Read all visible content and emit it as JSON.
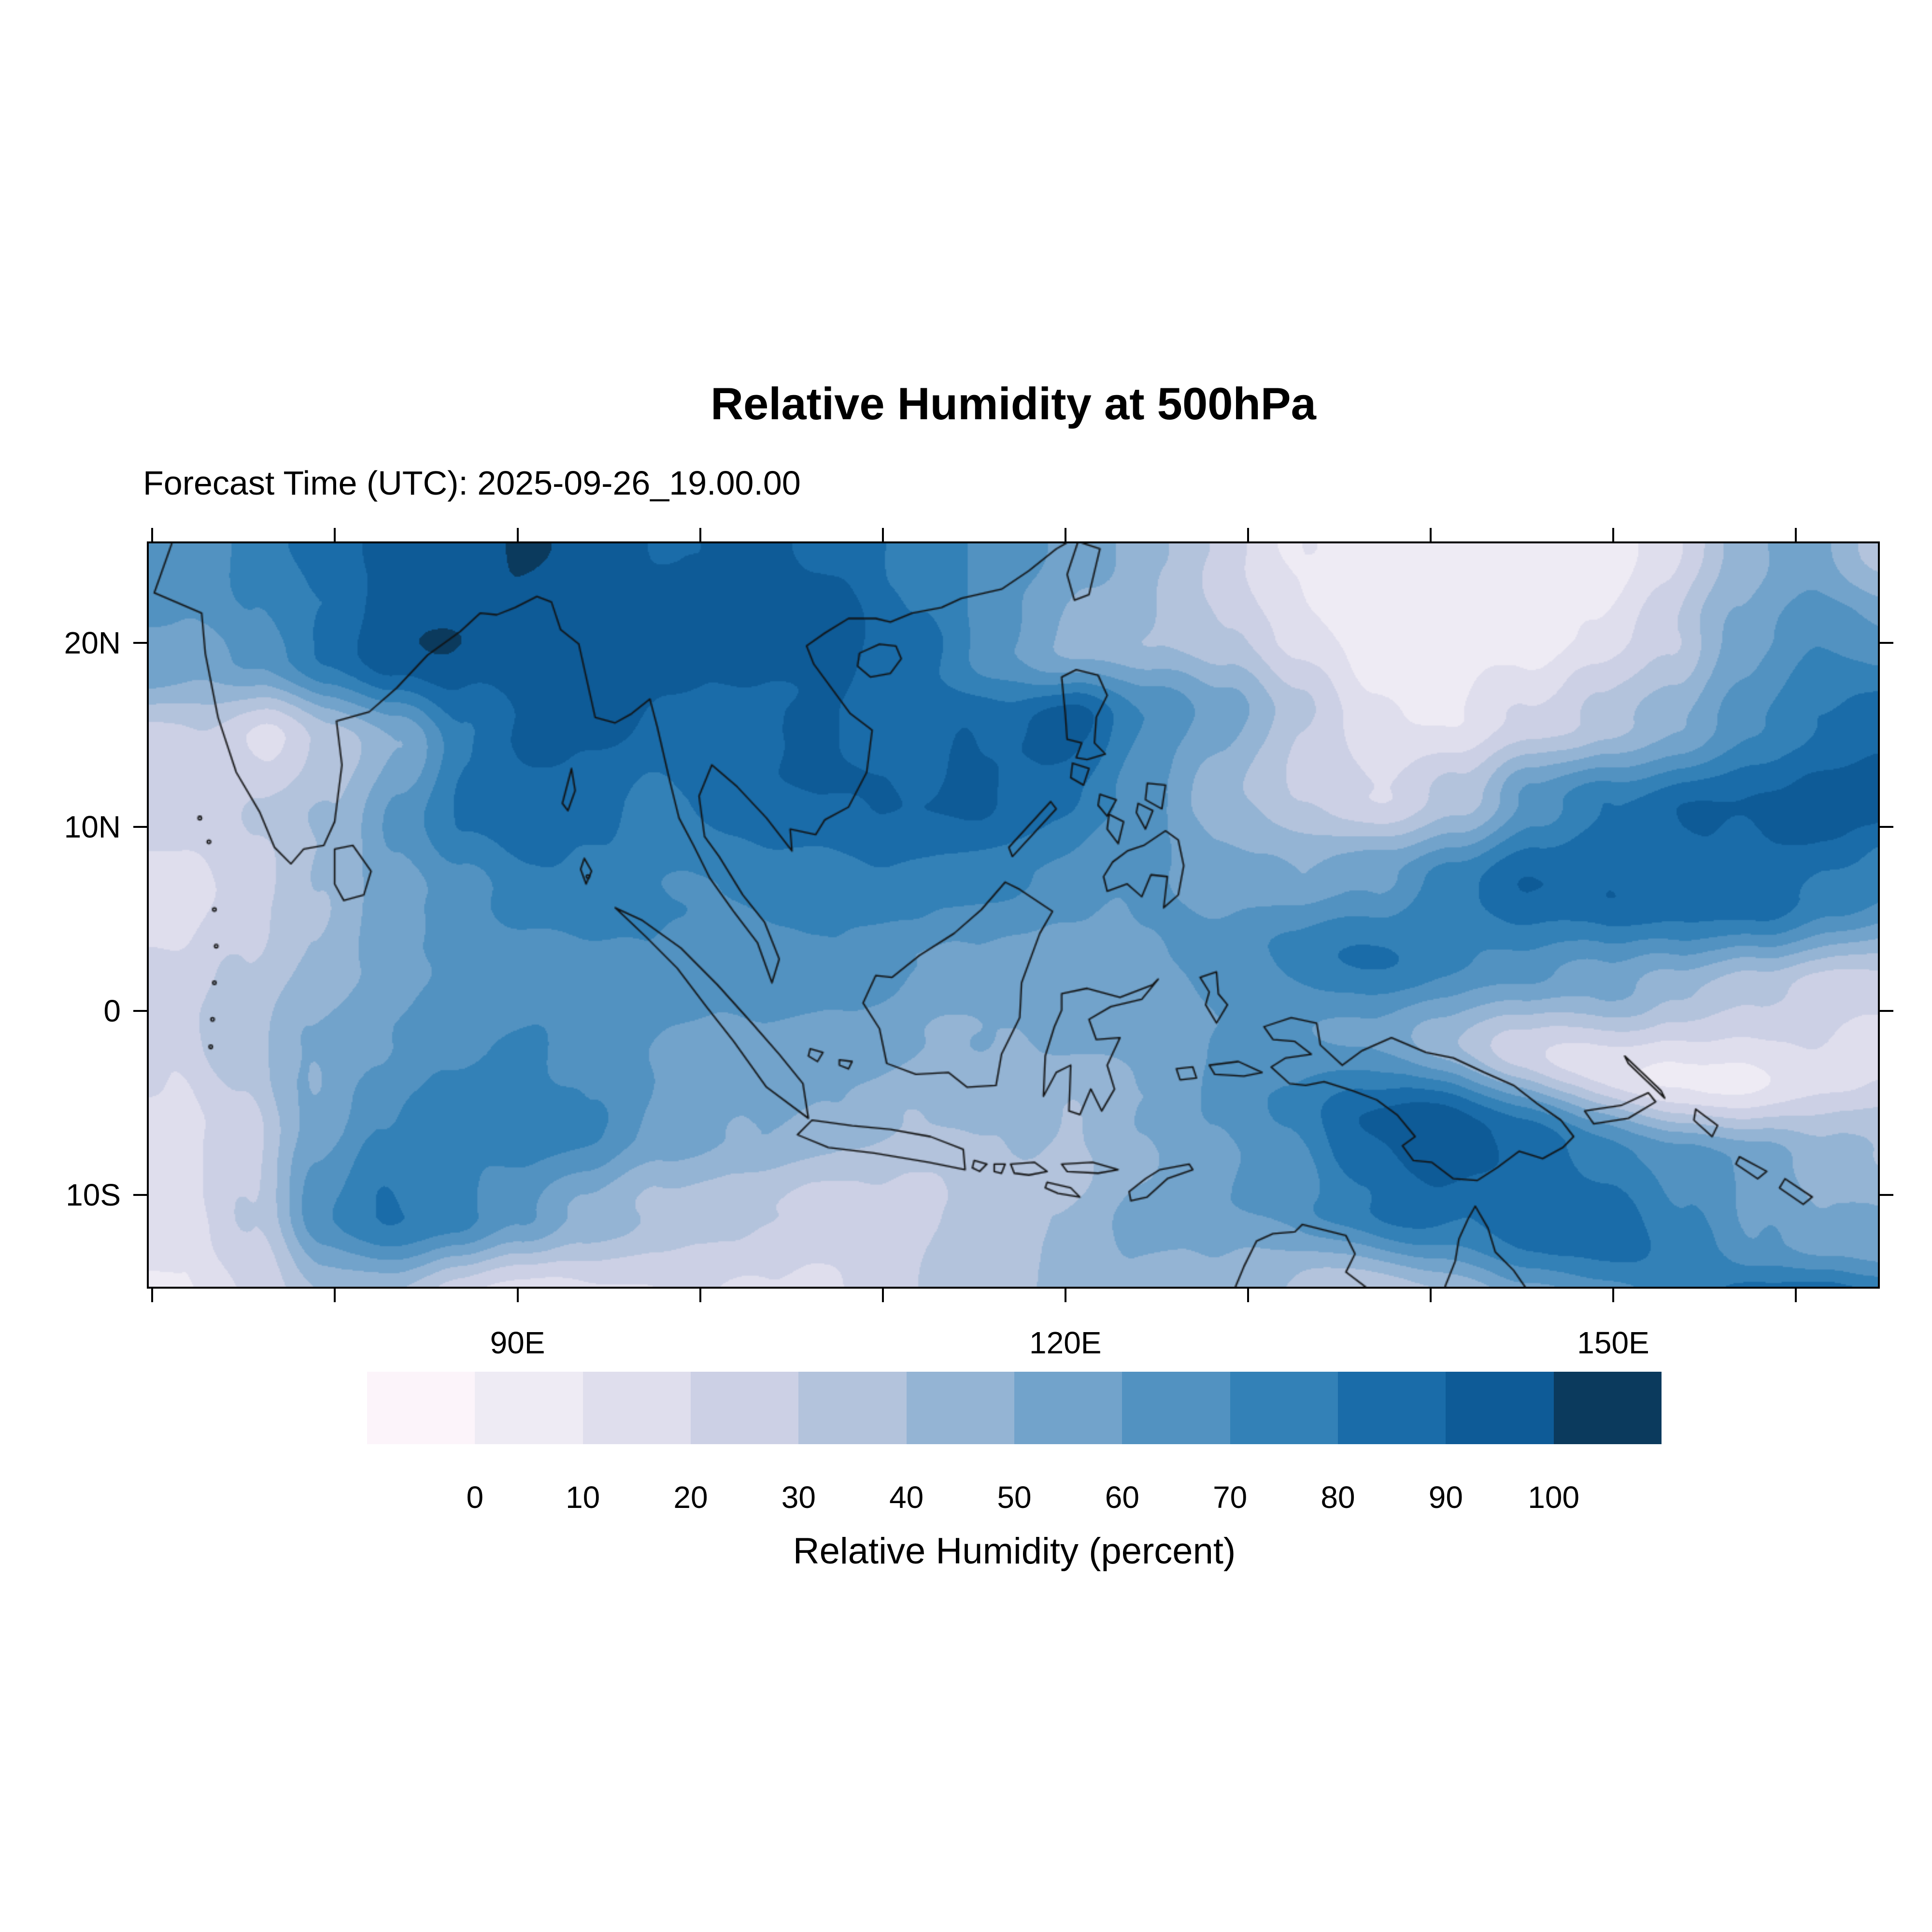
{
  "title": "Relative Humidity at 500hPa",
  "forecast_line": "Forecast Time (UTC): 2025-09-26_19.00.00",
  "chart_data": {
    "type": "heatmap",
    "variant": "filled-contour-geographic-map",
    "title": "Relative Humidity at 500hPa",
    "subtitle": "Forecast Time (UTC): 2025-09-26_19.00.00",
    "projection": "equirectangular",
    "coastlines": true,
    "extent": {
      "lon_min": 69.7,
      "lon_max": 164.6,
      "lat_min": -15.1,
      "lat_max": 25.5
    },
    "x_ticks": [
      {
        "label": "90E",
        "lon": 90
      },
      {
        "label": "120E",
        "lon": 120
      },
      {
        "label": "150E",
        "lon": 150
      }
    ],
    "y_ticks": [
      {
        "label": "20N",
        "lat": 20
      },
      {
        "label": "10N",
        "lat": 10
      },
      {
        "label": "0",
        "lat": 0
      },
      {
        "label": "10S",
        "lat": -10
      }
    ],
    "minor_tick_every_deg": 10,
    "colorbar": {
      "label": "Relative Humidity (percent)",
      "tick_labels": [
        "0",
        "10",
        "20",
        "30",
        "40",
        "50",
        "60",
        "70",
        "80",
        "90",
        "100"
      ],
      "levels": [
        0,
        10,
        20,
        30,
        40,
        50,
        60,
        70,
        80,
        90,
        100
      ],
      "colors": [
        "#fcf4fa",
        "#eeebf4",
        "#dfdeed",
        "#ccd0e5",
        "#b3c3dc",
        "#94b4d4",
        "#72a3cb",
        "#5292c1",
        "#3381b7",
        "#1a6ca9",
        "#0e5b97",
        "#0b3a5d"
      ]
    },
    "field": {
      "name": "relative humidity at 500 hPa",
      "units": "percent",
      "grid_cols": 24,
      "grid_rows": 10,
      "note": "approximate RH values read from the shaded contours, west-to-east columns, north-to-south rows",
      "values": [
        [
          60,
          70,
          80,
          88,
          92,
          95,
          90,
          88,
          92,
          90,
          75,
          55,
          45,
          35,
          25,
          12,
          8,
          6,
          8,
          15,
          25,
          45,
          55,
          40
        ],
        [
          50,
          65,
          85,
          95,
          100,
          98,
          95,
          92,
          95,
          90,
          80,
          60,
          45,
          40,
          30,
          15,
          8,
          6,
          10,
          20,
          35,
          55,
          70,
          60
        ],
        [
          30,
          22,
          40,
          60,
          85,
          95,
          95,
          90,
          88,
          85,
          75,
          85,
          92,
          70,
          55,
          35,
          15,
          12,
          25,
          40,
          55,
          65,
          75,
          80
        ],
        [
          25,
          35,
          45,
          70,
          90,
          92,
          90,
          88,
          85,
          82,
          80,
          85,
          80,
          60,
          45,
          30,
          22,
          40,
          70,
          88,
          92,
          90,
          88,
          85
        ],
        [
          15,
          28,
          45,
          60,
          70,
          80,
          82,
          78,
          75,
          72,
          70,
          68,
          65,
          60,
          55,
          50,
          60,
          80,
          95,
          95,
          90,
          85,
          70,
          60
        ],
        [
          18,
          30,
          45,
          55,
          65,
          68,
          70,
          72,
          70,
          65,
          58,
          55,
          58,
          62,
          68,
          75,
          82,
          78,
          72,
          60,
          45,
          30,
          22,
          25
        ],
        [
          15,
          35,
          55,
          65,
          72,
          78,
          70,
          62,
          58,
          50,
          45,
          50,
          55,
          60,
          65,
          62,
          55,
          45,
          30,
          18,
          12,
          10,
          12,
          15
        ],
        [
          10,
          25,
          55,
          75,
          80,
          78,
          75,
          60,
          50,
          42,
          35,
          38,
          45,
          55,
          62,
          75,
          88,
          95,
          90,
          80,
          70,
          55,
          42,
          35
        ],
        [
          8,
          30,
          70,
          82,
          75,
          60,
          45,
          35,
          28,
          22,
          20,
          28,
          38,
          48,
          58,
          68,
          78,
          85,
          92,
          88,
          75,
          60,
          50,
          45
        ],
        [
          5,
          20,
          40,
          35,
          20,
          14,
          10,
          8,
          8,
          10,
          18,
          28,
          35,
          42,
          38,
          32,
          28,
          35,
          50,
          60,
          75,
          88,
          95,
          90
        ]
      ]
    }
  }
}
